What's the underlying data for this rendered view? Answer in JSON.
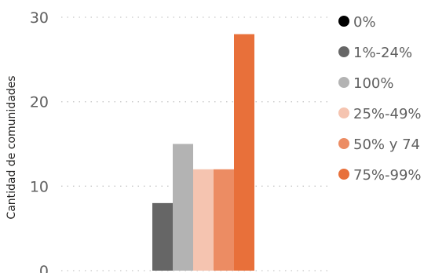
{
  "chart_data": {
    "type": "bar",
    "ylabel": "Cantidad de comunidades",
    "xlabel": "",
    "ylim": [
      0,
      30
    ],
    "yticks": [
      0,
      10,
      20,
      30
    ],
    "grid": true,
    "legend_position": "right",
    "series": [
      {
        "name": "0%",
        "value": 0,
        "color": "#000000"
      },
      {
        "name": "1%-24%",
        "value": 8,
        "color": "#666666"
      },
      {
        "name": "100%",
        "value": 15,
        "color": "#b3b3b3"
      },
      {
        "name": "25%-49%",
        "value": 12,
        "color": "#f5c4b0"
      },
      {
        "name": "50% y 74",
        "value": 12,
        "color": "#ec8c63"
      },
      {
        "name": "75%-99%",
        "value": 28,
        "color": "#e8703a"
      }
    ]
  }
}
